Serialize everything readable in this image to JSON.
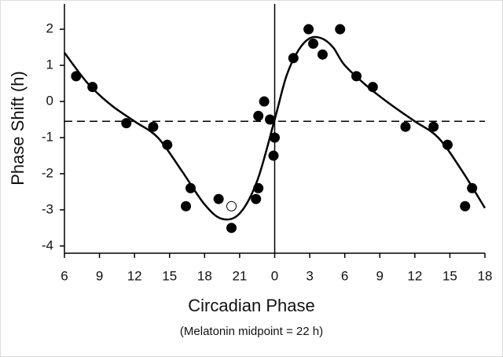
{
  "chart_data": {
    "type": "scatter",
    "xlabel": "Circadian Phase",
    "subtitle": "(Melatonin midpoint = 22 h)",
    "ylabel": "Phase Shift (h)",
    "xlim": [
      6,
      42
    ],
    "ylim": [
      -4.2,
      2.7
    ],
    "xticks": [
      6,
      9,
      12,
      15,
      18,
      21,
      {
        "value": 24,
        "label": "0"
      },
      {
        "value": 27,
        "label": "3"
      },
      {
        "value": 30,
        "label": "6"
      },
      {
        "value": 33,
        "label": "9"
      },
      {
        "value": 36,
        "label": "12"
      },
      {
        "value": 39,
        "label": "15"
      },
      {
        "value": 42,
        "label": "18"
      }
    ],
    "yticks": [
      2,
      1,
      0,
      -1,
      -2,
      -3,
      -4
    ],
    "series": [
      {
        "color": "#000000",
        "x": [
          7.0,
          8.4,
          11.3,
          13.6,
          14.8,
          16.8,
          16.4,
          19.2,
          20.3,
          22.4,
          22.6,
          22.6,
          23.1,
          23.6,
          24.0,
          23.9,
          25.6,
          26.9,
          27.3,
          28.1,
          29.6,
          31.0,
          32.4,
          35.2,
          37.6,
          38.8,
          40.9,
          40.3
        ],
        "values": [
          0.7,
          0.4,
          -0.6,
          -0.7,
          -1.2,
          -2.4,
          -2.9,
          -2.7,
          -3.5,
          -2.7,
          -2.4,
          -0.4,
          0.0,
          -0.5,
          -1.0,
          -1.5,
          1.2,
          2.0,
          1.6,
          1.3,
          2.0,
          0.7,
          0.4,
          -0.7,
          -0.7,
          -1.2,
          -2.4,
          -2.9
        ]
      },
      {
        "color": "#ffffff",
        "x": [
          20.3
        ],
        "values": [
          -2.9
        ]
      }
    ],
    "fit": {
      "color": "#000000",
      "x": [
        6,
        8,
        10,
        12,
        14,
        16,
        18,
        19.5,
        21,
        22.5,
        24,
        25,
        26,
        27,
        28,
        29,
        30,
        32,
        34,
        36,
        38,
        40,
        42
      ],
      "values": [
        1.35,
        0.5,
        -0.1,
        -0.55,
        -1.0,
        -1.9,
        -2.85,
        -3.25,
        -3.1,
        -2.2,
        -0.5,
        0.7,
        1.4,
        1.75,
        1.75,
        1.5,
        1.0,
        0.4,
        -0.1,
        -0.55,
        -1.0,
        -1.9,
        -2.95
      ]
    },
    "hline": -0.55,
    "vline": 24
  }
}
